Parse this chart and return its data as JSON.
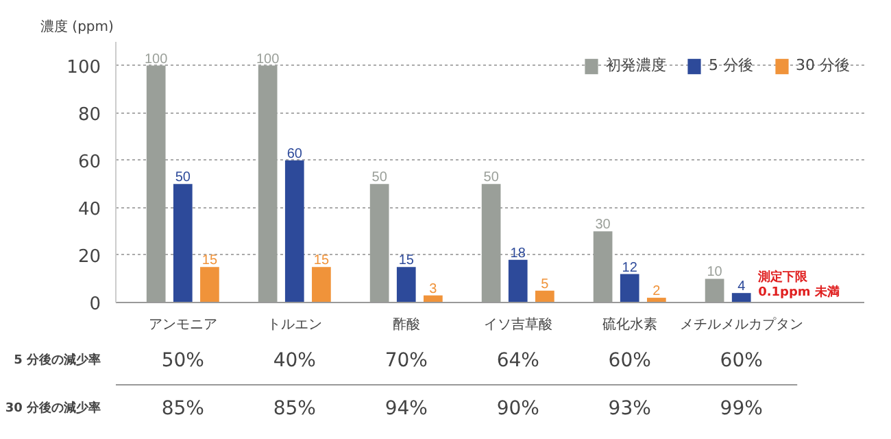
{
  "chart_data": {
    "type": "bar",
    "ylabel": "濃度 (ppm)",
    "categories": [
      "アンモニア",
      "トルエン",
      "酢酸",
      "イソ吉草酸",
      "硫化水素",
      "メチルメルカプタン"
    ],
    "series": [
      {
        "name": "初発濃度",
        "color": "#9a9f99",
        "values": [
          100,
          100,
          50,
          50,
          30,
          10
        ]
      },
      {
        "name": "5 分後",
        "color": "#2d4a9a",
        "values": [
          50,
          60,
          15,
          18,
          12,
          4
        ]
      },
      {
        "name": "30 分後",
        "color": "#f0933a",
        "values": [
          15,
          15,
          3,
          5,
          2,
          null
        ]
      }
    ],
    "ylim": [
      0,
      110
    ],
    "yticks": [
      0,
      20,
      40,
      60,
      80,
      100
    ],
    "grid": "y",
    "legend": "top right",
    "data_labels": true,
    "annotations": [
      {
        "text": "測定下限\n0.1ppm 未満",
        "x": "メチルメルカプタン",
        "y": 0
      },
      "5 分後の減少率",
      "50%",
      "40%",
      "70%",
      "64%",
      "60%",
      "60%",
      "30 分後の減少率",
      "85%",
      "85%",
      "94%",
      "90%",
      "93%",
      "99%"
    ]
  }
}
